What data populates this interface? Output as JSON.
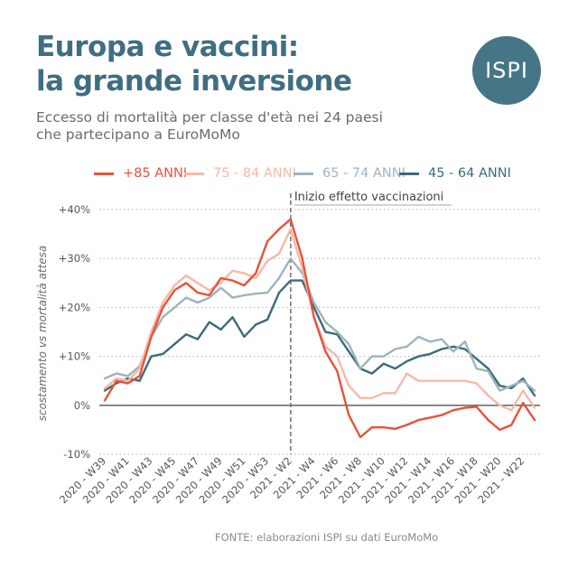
{
  "header": {
    "title_line1": "Europa e vaccini:",
    "title_line2": "la grande inversione",
    "subtitle_line1": "Eccesso di mortalità per classe d'età nei 24 paesi",
    "subtitle_line2": "che partecipano a EuroMoMo",
    "logo_text": "ISPI"
  },
  "colors": {
    "title": "#3f6e82",
    "logo_bg": "#467686",
    "s85": "#e8523a",
    "s75": "#f5b9a6",
    "s65": "#9eb3bf",
    "s45": "#3d6b7b"
  },
  "source": "FONTE: elaborazioni ISPI su dati EuroMoMo",
  "chart_data": {
    "type": "line",
    "ylabel": "scostamento vs mortalità attesa",
    "ylim": [
      -10,
      40
    ],
    "y_ticks": [
      -10,
      0,
      10,
      20,
      30,
      40
    ],
    "y_tick_labels": [
      "-10%",
      "0%",
      "+10%",
      "+20%",
      "+30%",
      "+40%"
    ],
    "x": [
      "2020 - W39",
      "2020 - W40",
      "2020 - W41",
      "2020 - W42",
      "2020 - W43",
      "2020 - W44",
      "2020 - W45",
      "2020 - W46",
      "2020 - W47",
      "2020 - W48",
      "2020 - W49",
      "2020 - W50",
      "2020 - W51",
      "2020 - W52",
      "2020 - W53",
      "2021 - W1",
      "2021 - W2",
      "2021 - W3",
      "2021 - W4",
      "2021 - W5",
      "2021 - W6",
      "2021 - W7",
      "2021 - W8",
      "2021 - W9",
      "2021 - W10",
      "2021 - W11",
      "2021 - W12",
      "2021 - W13",
      "2021 - W14",
      "2021 - W15",
      "2021 - W16",
      "2021 - W17",
      "2021 - W18",
      "2021 - W19",
      "2021 - W20",
      "2021 - W21",
      "2021 - W22",
      "2021 - W23"
    ],
    "x_tick_labels": [
      "2020 - W39",
      "2020 - W41",
      "2020 - W43",
      "2020 - W45",
      "2020 - W47",
      "2020 - W49",
      "2020 - W51",
      "2020 - W53",
      "2021 - W2",
      "2021 - W4",
      "2021 - W6",
      "2021 - W8",
      "2021 - W10",
      "2021 - W12",
      "2021 - W14",
      "2021 - W16",
      "2021 - W18",
      "2021 - W20",
      "2021 - W22"
    ],
    "x_ticks_every": 2,
    "grid": "horizontal dotted",
    "legend_position": "top",
    "annotation": {
      "label": "Inizio effetto vaccinazioni",
      "x": "2021 - W2"
    },
    "series": [
      {
        "name": "+85 ANNI",
        "color": "#e8523a",
        "values": [
          1,
          5,
          4.5,
          6,
          14,
          20,
          23.5,
          25,
          23,
          22.5,
          26,
          25.5,
          24.5,
          27,
          33.5,
          36,
          38,
          30,
          18,
          11,
          7,
          -2,
          -6.5,
          -4.5,
          -4.5,
          -4.8,
          -4,
          -3,
          -2.5,
          -2,
          -1,
          -0.5,
          -0.3,
          -3,
          -5,
          -4,
          0.5,
          -3
        ]
      },
      {
        "name": "75 - 84 ANNI",
        "color": "#f5b9a6",
        "values": [
          3.5,
          5.5,
          5,
          7.5,
          15,
          21,
          24.5,
          26.5,
          25,
          23.5,
          25,
          27.5,
          27,
          26,
          29.5,
          31,
          36,
          28,
          18,
          12,
          10,
          4,
          1.5,
          1.5,
          2.5,
          2.5,
          6.5,
          5,
          5,
          5,
          5,
          5,
          4.5,
          2,
          0,
          -1,
          3,
          -0.5
        ]
      },
      {
        "name": "65 - 74 ANNI",
        "color": "#9eb3bf",
        "values": [
          5.5,
          6.5,
          6,
          8,
          14,
          18,
          20,
          22,
          21,
          22,
          24,
          22,
          22.5,
          22.8,
          23,
          26,
          30,
          27,
          21,
          17,
          15,
          12.5,
          7.5,
          10,
          10,
          11.5,
          12,
          14,
          13,
          13.5,
          11,
          13,
          7.5,
          7,
          3,
          4,
          5,
          3
        ]
      },
      {
        "name": "45 - 64 ANNI",
        "color": "#3d6b7b",
        "values": [
          3,
          4.5,
          5.5,
          5,
          10,
          10.5,
          12.5,
          14.5,
          13.5,
          17,
          15.5,
          18,
          14,
          16.5,
          17.5,
          23,
          25.5,
          25.5,
          20,
          15,
          14.5,
          11,
          7.5,
          6.5,
          8.5,
          7.5,
          9,
          10,
          10.5,
          11.5,
          12,
          11.5,
          9.5,
          7.5,
          4,
          3.5,
          5.5,
          2
        ]
      }
    ]
  }
}
